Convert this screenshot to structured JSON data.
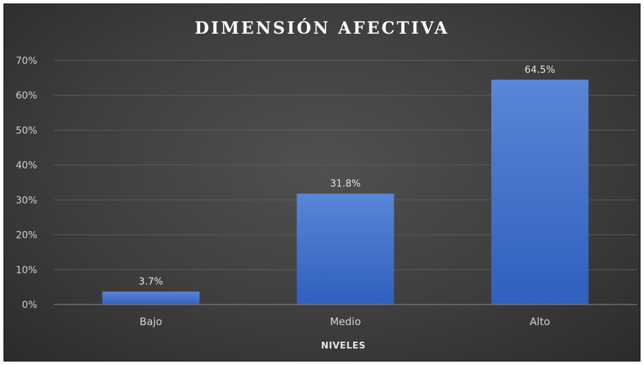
{
  "chart_data": {
    "type": "bar",
    "title": "DIMENSIÓN  AFECTIVA",
    "xlabel": "NIVELES",
    "ylabel": "",
    "categories": [
      "Bajo",
      "Medio",
      "Alto"
    ],
    "values": [
      3.7,
      31.8,
      64.5
    ],
    "data_labels": [
      "3.7%",
      "31.8%",
      "64.5%"
    ],
    "ylim": [
      0,
      70
    ],
    "yticks": [
      0,
      10,
      20,
      30,
      40,
      50,
      60,
      70
    ],
    "ytick_labels": [
      "0%",
      "10%",
      "20%",
      "30%",
      "40%",
      "50%",
      "60%",
      "70%"
    ],
    "grid": true,
    "legend": "none",
    "colors": {
      "bar": "#4472c4",
      "background": "#404040",
      "text": "#d9d9d9"
    }
  }
}
